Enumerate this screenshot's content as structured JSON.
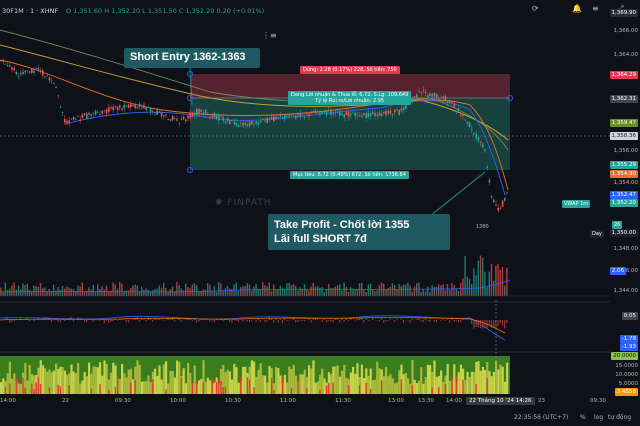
{
  "header": {
    "symbol": "30F1M · 1 · XHNF",
    "ohlc": "O 1,351.60  H 1,352.20  L 1,351.50  C 1,352.20  0.20 (+0.01%)"
  },
  "annotations": {
    "short_entry": "Short Entry 1362-1363",
    "take_profit_line1": "Take Profit - Chốt lời 1355",
    "take_profit_line2": "Lãi full SHORT 7đ"
  },
  "position": {
    "stop_label": "Dừng: 2.28 (0.17%) 228, Số tiền: 750",
    "open_label_line1": "Đang Lời nhuận & Thua lỗ: 6.72, S.Lg: 109.649",
    "open_label_line2": "Tỷ lệ Rủi ro/Lợi nhuận: 2.95",
    "target_label": "Mục tiêu: 6.72 (0.49%) 672, Số tiền: 1736.84"
  },
  "watermark": "FINPATH",
  "price_scale": {
    "ticks": [
      "1,366.00",
      "1,364.00",
      "1,362.00",
      "1,360.00",
      "1,358.00",
      "1,356.00",
      "1,354.00",
      "1,352.00",
      "1,350.00",
      "1,348.00",
      "1,346.00",
      "1,344.00"
    ],
    "tags": {
      "top": "1,369.90",
      "red": "1,364.29",
      "grey": "1,362.31",
      "green1": "1,359.47",
      "white": "1,358.36",
      "green2": "1,355.29",
      "orange": "1,354.90",
      "blue": "1,352.47",
      "teal": "1,352.20",
      "dark": "1,350.00",
      "vol": "2.06",
      "rsi": "0.05",
      "macd1": "-1.78",
      "macd2": "-1.93",
      "osc1": "20.0000",
      "osc2": "15.0000",
      "osc3": "10.0000",
      "osc4": "5.0000",
      "osc5": "3.4558"
    },
    "side_labels": {
      "vwap": "VWAP 1m",
      "day": "Day",
      "mark": "1380",
      "num": "26"
    }
  },
  "time_axis": {
    "labels": [
      "14:00",
      "22",
      "09:30",
      "10:00",
      "10:30",
      "11:00",
      "11:30",
      "13:00",
      "13:30",
      "14:00",
      "23",
      "09:30"
    ],
    "current": "22 Tháng 10 '24  14:26"
  },
  "bottom_bar": {
    "clock": "22:35:56 (UTC+7)",
    "pct": "%",
    "log": "log",
    "auto": "tự động"
  },
  "colors": {
    "background": "#0e1117",
    "up": "#26a69a",
    "down": "#ef5350",
    "entry_box": "#1f5a63",
    "stop_zone": "#5d2630",
    "target_zone": "#184a45"
  }
}
